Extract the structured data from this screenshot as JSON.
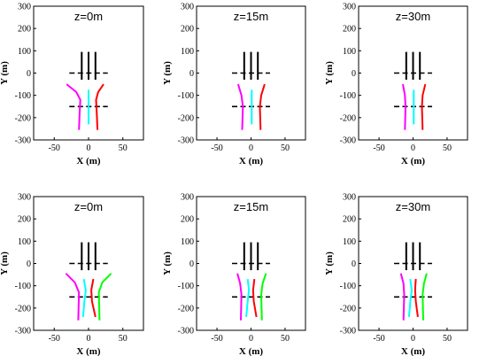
{
  "chart_data": [
    {
      "type": "line",
      "title": "z=0m",
      "xlabel": "X (m)",
      "ylabel": "Y (m)",
      "xlim": [
        -80,
        80
      ],
      "ylim": [
        -300,
        300
      ],
      "xticks": [
        -50,
        0,
        50
      ],
      "yticks": [
        -300,
        -200,
        -100,
        0,
        100,
        200,
        300
      ],
      "series": [
        {
          "color": "#000000",
          "x": [
            -10,
            -10
          ],
          "y": [
            95,
            -30
          ]
        },
        {
          "color": "#000000",
          "x": [
            0,
            0
          ],
          "y": [
            95,
            -30
          ]
        },
        {
          "color": "#000000",
          "x": [
            10,
            10
          ],
          "y": [
            95,
            -30
          ]
        },
        {
          "color": "#000000",
          "dashed": true,
          "x": [
            -28,
            28
          ],
          "y": [
            0,
            0
          ]
        },
        {
          "color": "#000000",
          "dashed": true,
          "x": [
            -28,
            28
          ],
          "y": [
            -150,
            -150
          ]
        },
        {
          "color": "#ff00ff",
          "x": [
            -32,
            -18,
            -12,
            -13,
            -14
          ],
          "y": [
            -50,
            -85,
            -120,
            -180,
            -255
          ]
        },
        {
          "color": "#00ffff",
          "x": [
            0,
            0,
            0
          ],
          "y": [
            -75,
            -150,
            -230
          ]
        },
        {
          "color": "#ff0000",
          "x": [
            22,
            14,
            11,
            12,
            13
          ],
          "y": [
            -50,
            -85,
            -120,
            -180,
            -255
          ]
        }
      ]
    },
    {
      "type": "line",
      "title": "z=15m",
      "xlabel": "X (m)",
      "ylabel": "Y (m)",
      "xlim": [
        -80,
        80
      ],
      "ylim": [
        -300,
        300
      ],
      "xticks": [
        -50,
        0,
        50
      ],
      "yticks": [
        -300,
        -200,
        -100,
        0,
        100,
        200,
        300
      ],
      "series": [
        {
          "color": "#000000",
          "x": [
            -10,
            -10
          ],
          "y": [
            95,
            -30
          ]
        },
        {
          "color": "#000000",
          "x": [
            0,
            0
          ],
          "y": [
            95,
            -30
          ]
        },
        {
          "color": "#000000",
          "x": [
            10,
            10
          ],
          "y": [
            95,
            -30
          ]
        },
        {
          "color": "#000000",
          "dashed": true,
          "x": [
            -28,
            28
          ],
          "y": [
            0,
            0
          ]
        },
        {
          "color": "#000000",
          "dashed": true,
          "x": [
            -28,
            28
          ],
          "y": [
            -150,
            -150
          ]
        },
        {
          "color": "#ff00ff",
          "x": [
            -19,
            -14,
            -12,
            -13
          ],
          "y": [
            -50,
            -100,
            -150,
            -255
          ]
        },
        {
          "color": "#00ffff",
          "x": [
            1,
            1,
            1
          ],
          "y": [
            -75,
            -150,
            -230
          ]
        },
        {
          "color": "#ff0000",
          "x": [
            20,
            15,
            13,
            14
          ],
          "y": [
            -50,
            -100,
            -150,
            -255
          ]
        }
      ]
    },
    {
      "type": "line",
      "title": "z=30m",
      "xlabel": "X (m)",
      "ylabel": "Y (m)",
      "xlim": [
        -80,
        80
      ],
      "ylim": [
        -300,
        300
      ],
      "xticks": [
        -50,
        0,
        50
      ],
      "yticks": [
        -300,
        -200,
        -100,
        0,
        100,
        200,
        300
      ],
      "series": [
        {
          "color": "#000000",
          "x": [
            -10,
            -10
          ],
          "y": [
            95,
            -30
          ]
        },
        {
          "color": "#000000",
          "x": [
            0,
            0
          ],
          "y": [
            95,
            -30
          ]
        },
        {
          "color": "#000000",
          "x": [
            10,
            10
          ],
          "y": [
            95,
            -30
          ]
        },
        {
          "color": "#000000",
          "dashed": true,
          "x": [
            -28,
            28
          ],
          "y": [
            0,
            0
          ]
        },
        {
          "color": "#000000",
          "dashed": true,
          "x": [
            -28,
            28
          ],
          "y": [
            -150,
            -150
          ]
        },
        {
          "color": "#ff00ff",
          "x": [
            -15,
            -12,
            -11,
            -12
          ],
          "y": [
            -50,
            -100,
            -150,
            -255
          ]
        },
        {
          "color": "#00ffff",
          "x": [
            1,
            1,
            1
          ],
          "y": [
            -75,
            -150,
            -230
          ]
        },
        {
          "color": "#ff0000",
          "x": [
            18,
            14,
            13,
            14
          ],
          "y": [
            -50,
            -100,
            -150,
            -255
          ]
        }
      ]
    },
    {
      "type": "line",
      "title": "z=0m",
      "xlabel": "X (m)",
      "ylabel": "Y (m)",
      "xlim": [
        -80,
        80
      ],
      "ylim": [
        -300,
        300
      ],
      "xticks": [
        -50,
        0,
        50
      ],
      "yticks": [
        -300,
        -200,
        -100,
        0,
        100,
        200,
        300
      ],
      "series": [
        {
          "color": "#000000",
          "x": [
            -10,
            -10
          ],
          "y": [
            95,
            -30
          ]
        },
        {
          "color": "#000000",
          "x": [
            0,
            0
          ],
          "y": [
            95,
            -30
          ]
        },
        {
          "color": "#000000",
          "x": [
            10,
            10
          ],
          "y": [
            95,
            -30
          ]
        },
        {
          "color": "#000000",
          "dashed": true,
          "x": [
            -28,
            28
          ],
          "y": [
            0,
            0
          ]
        },
        {
          "color": "#000000",
          "dashed": true,
          "x": [
            -28,
            28
          ],
          "y": [
            -150,
            -150
          ]
        },
        {
          "color": "#ff00ff",
          "x": [
            -33,
            -20,
            -14,
            -15
          ],
          "y": [
            -45,
            -85,
            -130,
            -255
          ]
        },
        {
          "color": "#00ffff",
          "x": [
            -7,
            -4,
            -6,
            -8
          ],
          "y": [
            -70,
            -120,
            -170,
            -240
          ]
        },
        {
          "color": "#ff0000",
          "x": [
            7,
            4,
            5,
            10
          ],
          "y": [
            -70,
            -120,
            -170,
            -240
          ]
        },
        {
          "color": "#00ff00",
          "x": [
            33,
            20,
            15,
            16
          ],
          "y": [
            -45,
            -85,
            -130,
            -255
          ]
        }
      ]
    },
    {
      "type": "line",
      "title": "z=15m",
      "xlabel": "X (m)",
      "ylabel": "Y (m)",
      "xlim": [
        -80,
        80
      ],
      "ylim": [
        -300,
        300
      ],
      "xticks": [
        -50,
        0,
        50
      ],
      "yticks": [
        -300,
        -200,
        -100,
        0,
        100,
        200,
        300
      ],
      "series": [
        {
          "color": "#000000",
          "x": [
            -10,
            -10
          ],
          "y": [
            95,
            -30
          ]
        },
        {
          "color": "#000000",
          "x": [
            0,
            0
          ],
          "y": [
            95,
            -30
          ]
        },
        {
          "color": "#000000",
          "x": [
            10,
            10
          ],
          "y": [
            95,
            -30
          ]
        },
        {
          "color": "#000000",
          "dashed": true,
          "x": [
            -28,
            28
          ],
          "y": [
            0,
            0
          ]
        },
        {
          "color": "#000000",
          "dashed": true,
          "x": [
            -28,
            28
          ],
          "y": [
            -150,
            -150
          ]
        },
        {
          "color": "#ff00ff",
          "x": [
            -20,
            -16,
            -14,
            -15
          ],
          "y": [
            -45,
            -90,
            -140,
            -255
          ]
        },
        {
          "color": "#00ffff",
          "x": [
            -5,
            -3,
            -5,
            -7
          ],
          "y": [
            -70,
            -120,
            -170,
            -240
          ]
        },
        {
          "color": "#ff0000",
          "x": [
            5,
            3,
            4,
            8
          ],
          "y": [
            -70,
            -120,
            -170,
            -240
          ]
        },
        {
          "color": "#00ff00",
          "x": [
            22,
            17,
            15,
            16
          ],
          "y": [
            -45,
            -90,
            -140,
            -255
          ]
        }
      ]
    },
    {
      "type": "line",
      "title": "z=30m",
      "xlabel": "X (m)",
      "ylabel": "Y (m)",
      "xlim": [
        -80,
        80
      ],
      "ylim": [
        -300,
        300
      ],
      "xticks": [
        -50,
        0,
        50
      ],
      "yticks": [
        -300,
        -200,
        -100,
        0,
        100,
        200,
        300
      ],
      "series": [
        {
          "color": "#000000",
          "x": [
            -10,
            -10
          ],
          "y": [
            95,
            -30
          ]
        },
        {
          "color": "#000000",
          "x": [
            0,
            0
          ],
          "y": [
            95,
            -30
          ]
        },
        {
          "color": "#000000",
          "x": [
            10,
            10
          ],
          "y": [
            95,
            -30
          ]
        },
        {
          "color": "#000000",
          "dashed": true,
          "x": [
            -28,
            28
          ],
          "y": [
            0,
            0
          ]
        },
        {
          "color": "#000000",
          "dashed": true,
          "x": [
            -28,
            28
          ],
          "y": [
            -150,
            -150
          ]
        },
        {
          "color": "#ff00ff",
          "x": [
            -18,
            -14,
            -13,
            -14
          ],
          "y": [
            -45,
            -90,
            -140,
            -255
          ]
        },
        {
          "color": "#00ffff",
          "x": [
            -4,
            -2,
            -4,
            -6
          ],
          "y": [
            -70,
            -120,
            -170,
            -240
          ]
        },
        {
          "color": "#ff0000",
          "x": [
            4,
            3,
            4,
            7
          ],
          "y": [
            -70,
            -120,
            -170,
            -240
          ]
        },
        {
          "color": "#00ff00",
          "x": [
            20,
            16,
            14,
            15
          ],
          "y": [
            -45,
            -90,
            -140,
            -255
          ]
        }
      ]
    }
  ]
}
